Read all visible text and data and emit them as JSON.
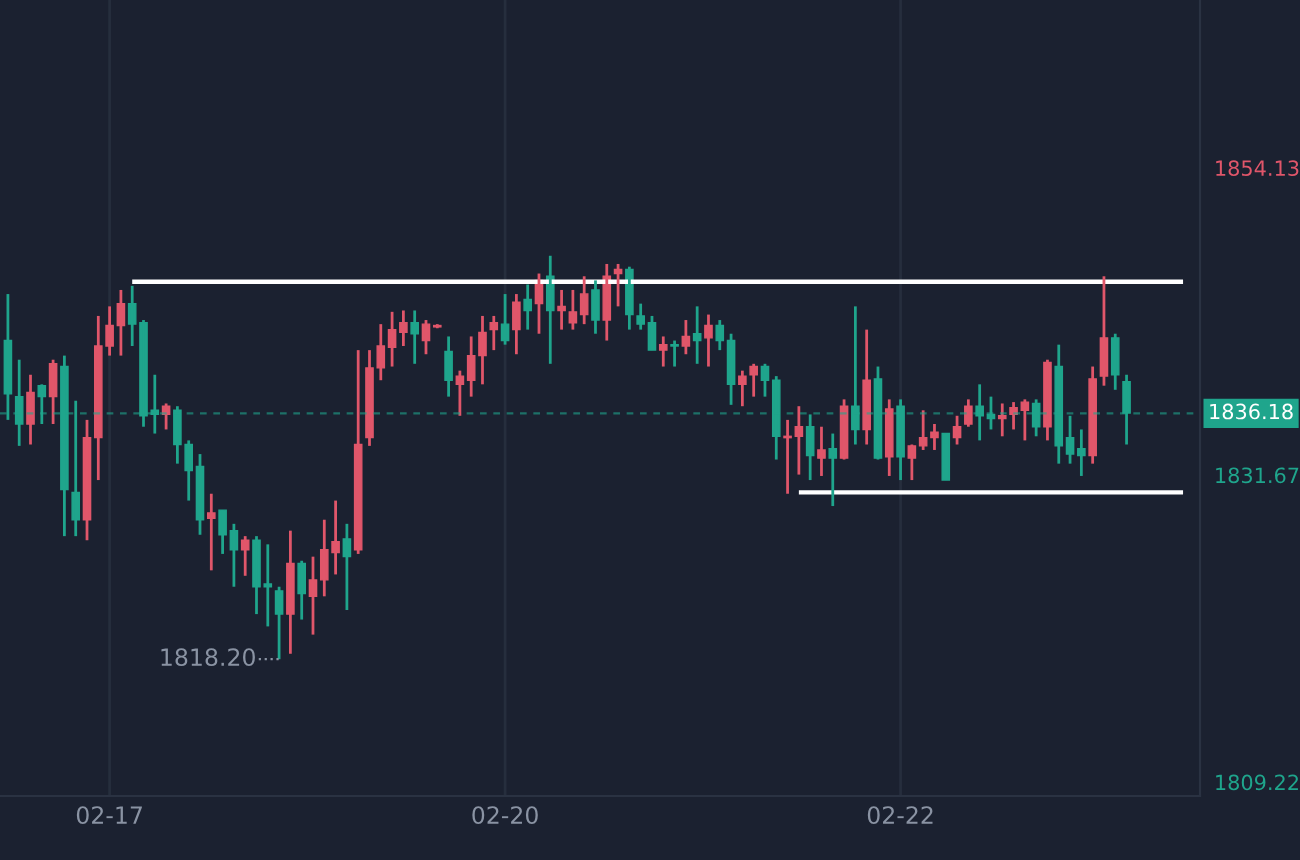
{
  "chart_data": {
    "type": "candlestick",
    "categories": [
      null,
      null,
      null,
      null,
      null,
      null,
      null,
      null,
      null,
      "02-17",
      null,
      null,
      null,
      null,
      null,
      null,
      null,
      null,
      null,
      null,
      null,
      null,
      null,
      null,
      null,
      null,
      null,
      null,
      null,
      null,
      null,
      null,
      null,
      null,
      null,
      null,
      null,
      null,
      null,
      null,
      null,
      null,
      null,
      null,
      "02-20",
      null,
      null,
      null,
      null,
      null,
      null,
      null,
      null,
      null,
      null,
      null,
      null,
      null,
      null,
      null,
      null,
      null,
      null,
      null,
      null,
      null,
      null,
      null,
      null,
      null,
      null,
      null,
      null,
      null,
      null,
      null,
      null,
      null,
      null,
      "02-22",
      null,
      null,
      null,
      null,
      null,
      null,
      null,
      null,
      null,
      null,
      null,
      null,
      null,
      null,
      null,
      null,
      null,
      null,
      null,
      null,
      null,
      null,
      null,
      null,
      null,
      null
    ],
    "ohlc": [
      [
        1841.5,
        1844.9,
        1835.7,
        1837.6
      ],
      [
        1837.4,
        1840.1,
        1833.8,
        1835.4
      ],
      [
        1835.4,
        1839.0,
        1833.9,
        1837.7
      ],
      [
        1838.2,
        1838.3,
        1835.4,
        1837.4
      ],
      [
        1837.4,
        1840.1,
        1835.4,
        1839.8
      ],
      [
        1839.6,
        1840.4,
        1827.2,
        1830.6
      ],
      [
        1830.4,
        1837.1,
        1827.2,
        1828.4
      ],
      [
        1828.4,
        1835.7,
        1826.9,
        1834.4
      ],
      [
        1834.4,
        1843.3,
        1831.3,
        1841.1
      ],
      [
        1841.1,
        1844.0,
        1840.4,
        1842.6
      ],
      [
        1842.6,
        1845.2,
        1840.4,
        1844.2
      ],
      [
        1844.2,
        1845.5,
        1841.1,
        1842.7
      ],
      [
        1842.8,
        1843.0,
        1835.2,
        1836.0
      ],
      [
        1836.4,
        1839.0,
        1834.7,
        1836.1
      ],
      [
        1836.1,
        1836.9,
        1835.0,
        1836.7
      ],
      [
        1836.4,
        1836.7,
        1832.5,
        1833.9
      ],
      [
        1833.9,
        1834.2,
        1829.8,
        1832.0
      ],
      [
        1832.3,
        1833.2,
        1827.3,
        1828.4
      ],
      [
        1828.5,
        1830.3,
        1824.7,
        1828.9
      ],
      [
        1829.1,
        1829.1,
        1825.9,
        1827.3
      ],
      [
        1827.6,
        1828.1,
        1823.5,
        1826.2
      ],
      [
        1826.2,
        1827.2,
        1824.3,
        1826.9
      ],
      [
        1826.9,
        1827.2,
        1821.5,
        1823.5
      ],
      [
        1823.7,
        1826.6,
        1820.6,
        1823.5
      ],
      [
        1823.2,
        1823.5,
        1818.2,
        1821.5
      ],
      [
        1821.5,
        1827.6,
        1818.6,
        1825.2
      ],
      [
        1825.2,
        1825.4,
        1821.1,
        1823.0
      ],
      [
        1822.8,
        1825.7,
        1820.0,
        1824.0
      ],
      [
        1824.0,
        1828.4,
        1822.8,
        1826.2
      ],
      [
        1826.0,
        1829.8,
        1824.4,
        1826.8
      ],
      [
        1827.0,
        1828.1,
        1821.8,
        1825.7
      ],
      [
        1826.2,
        1840.8,
        1825.9,
        1833.9
      ],
      [
        1834.4,
        1840.8,
        1833.8,
        1839.5
      ],
      [
        1839.5,
        1842.7,
        1838.6,
        1841.1
      ],
      [
        1841.0,
        1843.6,
        1839.6,
        1842.3
      ],
      [
        1842.1,
        1843.7,
        1841.1,
        1842.8
      ],
      [
        1842.8,
        1843.7,
        1839.8,
        1842.0
      ],
      [
        1841.5,
        1843.0,
        1840.5,
        1842.7
      ],
      [
        1842.5,
        1842.7,
        1842.4,
        1842.6
      ],
      [
        1840.7,
        1841.8,
        1837.4,
        1838.6
      ],
      [
        1838.3,
        1839.3,
        1836.0,
        1838.9
      ],
      [
        1838.6,
        1841.8,
        1837.4,
        1840.4
      ],
      [
        1840.4,
        1843.3,
        1838.3,
        1842.1
      ],
      [
        1842.3,
        1843.3,
        1840.8,
        1842.8
      ],
      [
        1842.7,
        1844.9,
        1841.2,
        1841.5
      ],
      [
        1842.3,
        1844.9,
        1840.5,
        1844.3
      ],
      [
        1844.5,
        1845.6,
        1842.3,
        1843.7
      ],
      [
        1844.2,
        1846.4,
        1842.0,
        1845.9
      ],
      [
        1846.2,
        1847.7,
        1839.8,
        1843.7
      ],
      [
        1843.7,
        1845.2,
        1842.3,
        1844.0
      ],
      [
        1842.8,
        1845.2,
        1842.3,
        1843.6
      ],
      [
        1843.4,
        1846.2,
        1842.7,
        1844.9
      ],
      [
        1845.2,
        1845.9,
        1842.0,
        1843.0
      ],
      [
        1843.0,
        1847.1,
        1841.5,
        1846.2
      ],
      [
        1846.4,
        1847.1,
        1844.0,
        1846.7
      ],
      [
        1846.7,
        1846.9,
        1842.3,
        1843.4
      ],
      [
        1843.3,
        1844.2,
        1842.3,
        1842.7
      ],
      [
        1842.8,
        1843.3,
        1840.8,
        1840.8
      ],
      [
        1840.8,
        1841.8,
        1839.6,
        1841.2
      ],
      [
        1841.2,
        1841.5,
        1839.6,
        1841.1
      ],
      [
        1841.1,
        1843.0,
        1840.5,
        1841.8
      ],
      [
        1842.0,
        1844.0,
        1839.8,
        1841.5
      ],
      [
        1841.7,
        1843.4,
        1839.6,
        1842.6
      ],
      [
        1842.6,
        1843.0,
        1840.8,
        1841.5
      ],
      [
        1841.5,
        1842.0,
        1836.8,
        1838.3
      ],
      [
        1838.3,
        1839.3,
        1836.7,
        1838.9
      ],
      [
        1839.0,
        1839.8,
        1837.4,
        1839.6
      ],
      [
        1839.6,
        1839.8,
        1837.4,
        1838.6
      ],
      [
        1838.6,
        1838.9,
        1832.8,
        1834.5
      ],
      [
        1834.4,
        1835.7,
        1830.3,
        1834.5
      ],
      [
        1834.5,
        1836.7,
        1831.7,
        1835.2
      ],
      [
        1835.2,
        1836.1,
        1831.3,
        1833.1
      ],
      [
        1832.9,
        1835.2,
        1831.6,
        1833.5
      ],
      [
        1833.6,
        1834.7,
        1829.4,
        1832.9
      ],
      [
        1832.9,
        1837.2,
        1832.8,
        1836.7
      ],
      [
        1836.7,
        1844.0,
        1833.9,
        1835.0
      ],
      [
        1835.0,
        1842.3,
        1833.9,
        1838.6
      ],
      [
        1838.7,
        1839.6,
        1832.8,
        1832.9
      ],
      [
        1833.0,
        1837.2,
        1831.6,
        1836.5
      ],
      [
        1836.7,
        1837.2,
        1831.3,
        1833.0
      ],
      [
        1832.9,
        1833.9,
        1831.3,
        1833.8
      ],
      [
        1833.8,
        1836.4,
        1833.5,
        1834.4
      ],
      [
        1834.4,
        1835.4,
        1833.5,
        1834.8
      ],
      [
        1834.7,
        1834.7,
        1831.3,
        1831.3
      ],
      [
        1834.4,
        1836.0,
        1833.9,
        1835.2
      ],
      [
        1835.4,
        1837.2,
        1835.2,
        1836.7
      ],
      [
        1836.7,
        1838.3,
        1834.2,
        1836.0
      ],
      [
        1836.1,
        1837.4,
        1835.0,
        1835.8
      ],
      [
        1835.8,
        1836.9,
        1834.5,
        1836.0
      ],
      [
        1836.1,
        1837.0,
        1835.0,
        1836.6
      ],
      [
        1836.4,
        1837.2,
        1834.2,
        1837.0
      ],
      [
        1836.9,
        1837.2,
        1834.5,
        1835.2
      ],
      [
        1835.2,
        1840.1,
        1834.2,
        1839.9
      ],
      [
        1839.6,
        1841.2,
        1832.5,
        1833.8
      ],
      [
        1834.4,
        1836.0,
        1832.5,
        1833.2
      ],
      [
        1833.6,
        1835.0,
        1831.6,
        1833.1
      ],
      [
        1833.1,
        1839.6,
        1832.5,
        1838.7
      ],
      [
        1838.9,
        1846.2,
        1838.2,
        1841.7
      ],
      [
        1841.7,
        1842.0,
        1837.9,
        1839.0
      ],
      [
        1838.5,
        1839.0,
        1833.9,
        1836.2
      ],
      null,
      null,
      null,
      null,
      null,
      null
    ],
    "series": [
      {
        "type": "line",
        "color": "#ffffff",
        "values": [
          null,
          null,
          null,
          null,
          null,
          null,
          null,
          null,
          null,
          null,
          null,
          1845.8,
          1845.8,
          1845.8,
          1845.8,
          1845.8,
          1845.8,
          1845.8,
          1845.8,
          1845.8,
          1845.8,
          1845.8,
          1845.8,
          1845.8,
          1845.8,
          1845.8,
          1845.8,
          1845.8,
          1845.8,
          1845.8,
          1845.8,
          1845.8,
          1845.8,
          1845.8,
          1845.8,
          1845.8,
          1845.8,
          1845.8,
          1845.8,
          1845.8,
          1845.8,
          1845.8,
          1845.8,
          1845.8,
          1845.8,
          1845.8,
          1845.8,
          1845.8,
          1845.8,
          1845.8,
          1845.8,
          1845.8,
          1845.8,
          1845.8,
          1845.8,
          1845.8,
          1845.8,
          1845.8,
          1845.8,
          1845.8,
          1845.8,
          1845.8,
          1845.8,
          1845.8,
          1845.8,
          1845.8,
          1845.8,
          1845.8,
          1845.8,
          1845.8,
          1845.8,
          1845.8,
          1845.8,
          1845.8,
          1845.8,
          1845.8,
          1845.8,
          1845.8,
          1845.8,
          1845.8,
          1845.8,
          1845.8,
          1845.8,
          1845.8,
          1845.8,
          1845.8,
          1845.8,
          1845.8,
          1845.8,
          1845.8,
          1845.8,
          1845.8,
          1845.8,
          1845.8,
          1845.8,
          1845.8,
          1845.8,
          1845.8,
          1845.8,
          1845.8,
          1845.8,
          1845.8,
          1845.8,
          1845.8,
          1845.8,
          null
        ]
      },
      {
        "type": "line",
        "color": "#ffffff",
        "values": [
          null,
          null,
          null,
          null,
          null,
          null,
          null,
          null,
          null,
          null,
          null,
          null,
          null,
          null,
          null,
          null,
          null,
          null,
          null,
          null,
          null,
          null,
          null,
          null,
          null,
          null,
          null,
          null,
          null,
          null,
          null,
          null,
          null,
          null,
          null,
          null,
          null,
          null,
          null,
          null,
          null,
          null,
          null,
          null,
          null,
          null,
          null,
          null,
          null,
          null,
          null,
          null,
          null,
          null,
          null,
          null,
          null,
          null,
          null,
          null,
          null,
          null,
          null,
          null,
          null,
          null,
          null,
          null,
          null,
          null,
          1830.4,
          1830.4,
          1830.4,
          1830.4,
          1830.4,
          1830.4,
          1830.4,
          1830.4,
          1830.4,
          1830.4,
          1830.4,
          1830.4,
          1830.4,
          1830.4,
          1830.4,
          1830.4,
          1830.4,
          1830.4,
          1830.4,
          1830.4,
          1830.4,
          1830.4,
          1830.4,
          1830.4,
          1830.4,
          1830.4,
          1830.4,
          1830.4,
          1830.4,
          1830.4,
          1830.4,
          1830.4,
          1830.4,
          1830.4,
          1830.4,
          null
        ]
      }
    ],
    "ylim": [
      1808.2,
      1866.4
    ],
    "yticks": [
      1854.13,
      1831.67,
      1809.22
    ],
    "ref_lines": [
      {
        "axis": "y",
        "value": 1836.18,
        "label": "1836.18",
        "color": "#1fa58c",
        "line_style": "dashed"
      }
    ],
    "annotations": [
      "1818.20"
    ],
    "grid": "x"
  }
}
